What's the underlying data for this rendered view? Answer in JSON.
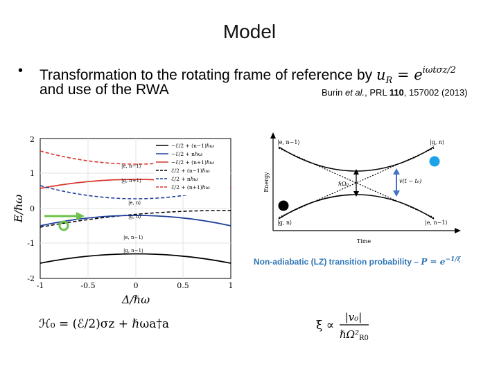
{
  "slide": {
    "title": "Model",
    "bullet_marker": "•",
    "bullet_line1": "Transformation to the rotating frame of reference by ",
    "bullet_math_base": "u",
    "bullet_math_sub": "R",
    "bullet_math_eq": " = e",
    "bullet_math_exp": "iωtσz/2",
    "bullet_line2": "and use of the RWA",
    "reference_prefix": "Burin ",
    "reference_etal": "et al.",
    "reference_journal": ", PRL ",
    "reference_volume": "110",
    "reference_rest": ", 157002 (2013)"
  },
  "left_plot": {
    "ylabel": "E/ℏω",
    "xlabel": "Δ/ℏω",
    "xticks": [
      "-1",
      "-0.5",
      "0",
      "0.5",
      "1"
    ],
    "yticks": [
      "2",
      "1",
      "0",
      "-1",
      "-2"
    ],
    "legend": [
      {
        "label": "−ℰ/2 + (n−1)ℏω",
        "color": "#000000",
        "dash": false
      },
      {
        "label": "−ℰ/2 + nℏω",
        "color": "#1f3f99",
        "dash": false
      },
      {
        "label": "−ℰ/2 + (n+1)ℏω",
        "color": "#d9342b",
        "dash": false
      },
      {
        "label": "ℰ/2 + (n−1)ℏω",
        "color": "#000000",
        "dash": true
      },
      {
        "label": "ℰ/2 + nℏω",
        "color": "#1f3f99",
        "dash": true
      },
      {
        "label": "ℰ/2 + (n+1)ℏω",
        "color": "#d9342b",
        "dash": true
      }
    ],
    "state_labels": [
      "|e, n−1⟩",
      "|g, n+1⟩",
      "|e, n⟩",
      "|g, n⟩",
      "|e, n−1⟩",
      "|g, n−1⟩"
    ],
    "hamiltonian": "ℋ₀ = (ℰ/2)σz + ℏωa†a"
  },
  "right_plot": {
    "ylabel": "Energy",
    "xlabel": "Time",
    "top_left_state": "|e, n−1⟩",
    "top_right_state": "|g, n⟩",
    "bottom_left_state": "|g, n⟩",
    "bottom_right_state": "|e, n−1⟩",
    "gap_label": "ℏΩ₀",
    "velocity_label": "v(t − t₀)"
  },
  "lz": {
    "label_text": "Non-adiabatic (LZ) transition probability – ",
    "label_math": "P = e",
    "label_exp": "−1/ξ",
    "xi_lhs": "ξ ∝",
    "xi_num": "|v₀|",
    "xi_den": "ℏΩ²",
    "xi_den_sub": "R0"
  },
  "colors": {
    "accent_blue": "#2e75b6",
    "marker_green": "#6cc24a",
    "marker_cyan": "#1aa3e8"
  }
}
